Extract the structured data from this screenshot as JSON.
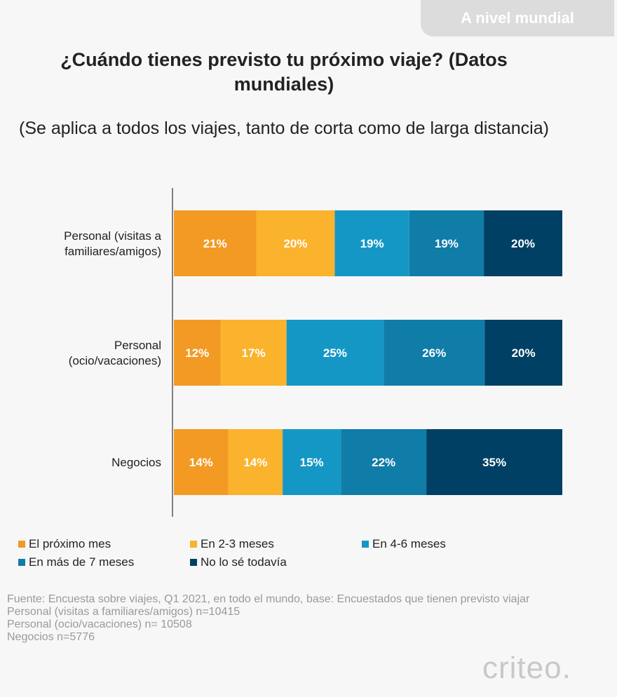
{
  "badge": "A nivel mundial",
  "title": "¿Cuándo tienes previsto tu próximo viaje? (Datos mundiales)",
  "subtitle": "(Se aplica a todos los viajes, tanto de corta como de larga distancia)",
  "colors": {
    "el_proximo_mes": "#f29a24",
    "en_2_3_meses": "#fbb22c",
    "en_4_6_meses": "#1597c5",
    "en_mas_de_7_meses": "#107ca8",
    "no_lo_se": "#004064"
  },
  "chart_data": {
    "type": "bar",
    "orientation": "horizontal",
    "stacked": true,
    "categories": [
      "Personal (visitas a familiares/amigos)",
      "Personal (ocio/vacaciones)",
      "Negocios"
    ],
    "series": [
      {
        "name": "El próximo mes",
        "color": "#f29a24",
        "values": [
          21,
          12,
          14
        ]
      },
      {
        "name": "En 2-3 meses",
        "color": "#fbb22c",
        "values": [
          20,
          17,
          14
        ]
      },
      {
        "name": "En 4-6 meses",
        "color": "#1597c5",
        "values": [
          19,
          25,
          15
        ]
      },
      {
        "name": "En más de 7 meses",
        "color": "#107ca8",
        "values": [
          19,
          26,
          22
        ]
      },
      {
        "name": "No lo sé todavía",
        "color": "#004064",
        "values": [
          20,
          20,
          35
        ]
      }
    ],
    "value_suffix": "%",
    "legend_position": "bottom"
  },
  "source": {
    "lines": [
      "Fuente: Encuesta sobre viajes, Q1 2021, en todo el mundo, base: Encuestados que tienen previsto viajar",
      "Personal (visitas a familiares/amigos) n=10415",
      "Personal (ocio/vacaciones) n= 10508",
      "Negocios n=5776"
    ]
  },
  "logo": "criteo"
}
